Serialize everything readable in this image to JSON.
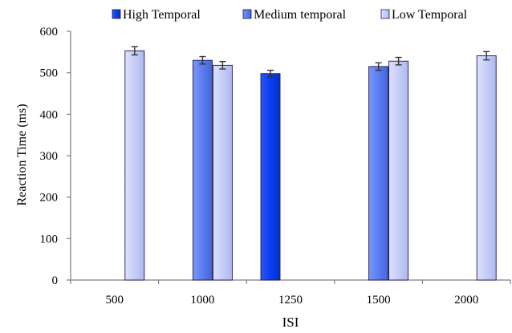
{
  "chart_data": {
    "type": "bar",
    "title": "",
    "xlabel": "ISI",
    "ylabel": "Reaction Time (ms)",
    "ylim": [
      0,
      600
    ],
    "yticks": [
      "0",
      "100",
      "200",
      "300",
      "400",
      "500",
      "600"
    ],
    "categories": [
      "500",
      "1000",
      "1250",
      "1500",
      "2000"
    ],
    "legend_position": "top",
    "series": [
      {
        "name": "High Temporal",
        "color": "#0a3ef0",
        "values": [
          null,
          null,
          498,
          null,
          null
        ],
        "errors": [
          null,
          null,
          8,
          null,
          null
        ]
      },
      {
        "name": "Medium temporal",
        "color": "#5b7df2",
        "values": [
          null,
          530,
          null,
          515,
          null
        ],
        "errors": [
          null,
          9,
          null,
          9,
          null
        ]
      },
      {
        "name": "Low Temporal",
        "color": "#c6cdf7",
        "values": [
          553,
          518,
          null,
          528,
          541
        ],
        "errors": [
          10,
          9,
          null,
          9,
          10
        ]
      }
    ]
  }
}
